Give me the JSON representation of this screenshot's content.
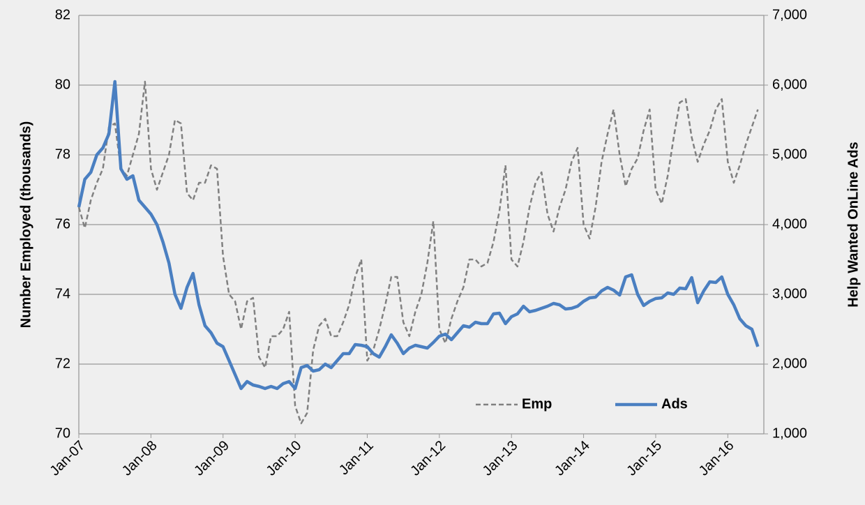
{
  "chart_data": {
    "type": "line",
    "categories": [
      "Jan-07",
      null,
      null,
      null,
      null,
      null,
      null,
      null,
      null,
      null,
      null,
      null,
      "Jan-08",
      null,
      null,
      null,
      null,
      null,
      null,
      null,
      null,
      null,
      null,
      null,
      "Jan-09",
      null,
      null,
      null,
      null,
      null,
      null,
      null,
      null,
      null,
      null,
      null,
      "Jan-10",
      null,
      null,
      null,
      null,
      null,
      null,
      null,
      null,
      null,
      null,
      null,
      "Jan-11",
      null,
      null,
      null,
      null,
      null,
      null,
      null,
      null,
      null,
      null,
      null,
      "Jan-12",
      null,
      null,
      null,
      null,
      null,
      null,
      null,
      null,
      null,
      null,
      null,
      "Jan-13",
      null,
      null,
      null,
      null,
      null,
      null,
      null,
      null,
      null,
      null,
      null,
      "Jan-14",
      null,
      null,
      null,
      null,
      null,
      null,
      null,
      null,
      null,
      null,
      null,
      "Jan-15",
      null,
      null,
      null,
      null,
      null,
      null,
      null,
      null,
      null,
      null,
      null,
      "Jan-16",
      null,
      null,
      null,
      null,
      null
    ],
    "series": [
      {
        "name": "Emp",
        "color": "#808080",
        "dash": true,
        "axis": "y",
        "values": [
          76.5,
          75.9,
          76.7,
          77.2,
          77.6,
          78.8,
          78.9,
          77.6,
          77.4,
          78.0,
          78.6,
          80.1,
          77.6,
          77.0,
          77.5,
          78.0,
          79.0,
          78.9,
          76.9,
          76.7,
          77.2,
          77.2,
          77.7,
          77.6,
          75.1,
          74.0,
          73.8,
          73.0,
          73.8,
          73.9,
          72.2,
          71.9,
          72.8,
          72.8,
          73.0,
          73.5,
          70.8,
          70.3,
          70.6,
          72.4,
          73.1,
          73.3,
          72.8,
          72.8,
          73.2,
          73.7,
          74.5,
          75.0,
          72.1,
          72.4,
          73.0,
          73.7,
          74.5,
          74.5,
          73.2,
          72.8,
          73.5,
          74.0,
          74.9,
          76.1,
          73.0,
          72.6,
          73.3,
          73.8,
          74.2,
          75.0,
          75.0,
          74.8,
          74.9,
          75.5,
          76.4,
          77.7,
          75.0,
          74.8,
          75.5,
          76.5,
          77.2,
          77.5,
          76.3,
          75.8,
          76.5,
          77.0,
          77.8,
          78.2,
          76.0,
          75.6,
          76.5,
          77.8,
          78.6,
          79.3,
          78.0,
          77.1,
          77.6,
          77.9,
          78.7,
          79.3,
          77.0,
          76.6,
          77.4,
          78.5,
          79.5,
          79.6,
          78.5,
          77.8,
          78.3,
          78.7,
          79.3,
          79.6,
          77.8,
          77.2,
          77.7,
          78.3,
          78.8,
          79.3
        ]
      },
      {
        "name": "Ads",
        "color": "#4a7fc1",
        "dash": false,
        "axis": "y2",
        "values": [
          4250,
          4650,
          4750,
          5000,
          5100,
          5300,
          6050,
          4800,
          4650,
          4700,
          4350,
          4250,
          4150,
          4000,
          3750,
          3450,
          3000,
          2800,
          3100,
          3300,
          2850,
          2550,
          2450,
          2300,
          2250,
          2050,
          1850,
          1650,
          1750,
          1700,
          1680,
          1650,
          1680,
          1650,
          1720,
          1750,
          1650,
          1950,
          1980,
          1900,
          1920,
          2000,
          1950,
          2050,
          2150,
          2150,
          2280,
          2270,
          2250,
          2150,
          2100,
          2250,
          2420,
          2300,
          2150,
          2230,
          2270,
          2250,
          2230,
          2310,
          2400,
          2430,
          2350,
          2450,
          2550,
          2530,
          2600,
          2580,
          2580,
          2720,
          2730,
          2580,
          2680,
          2720,
          2830,
          2750,
          2770,
          2800,
          2830,
          2870,
          2850,
          2790,
          2800,
          2830,
          2900,
          2950,
          2960,
          3050,
          3100,
          3060,
          2990,
          3250,
          3280,
          3000,
          2840,
          2900,
          2940,
          2950,
          3020,
          3000,
          3090,
          3080,
          3240,
          2880,
          3050,
          3180,
          3170,
          3250,
          3000,
          2850,
          2650,
          2550,
          2500,
          2250
        ]
      }
    ],
    "ylabel": "Number Employed (thousands)",
    "y2label": "Help Wanted OnLine Ads",
    "ylim": [
      70,
      82
    ],
    "yticks": [
      70,
      72,
      74,
      76,
      78,
      80,
      82
    ],
    "y2lim": [
      1000,
      7000
    ],
    "y2ticks": [
      {
        "value": 1000,
        "label": "1,000"
      },
      {
        "value": 2000,
        "label": "2,000"
      },
      {
        "value": 3000,
        "label": "3,000"
      },
      {
        "value": 4000,
        "label": "4,000"
      },
      {
        "value": 5000,
        "label": "5,000"
      },
      {
        "value": 6000,
        "label": "6,000"
      },
      {
        "value": 7000,
        "label": "7,000"
      }
    ],
    "grid": true,
    "legend": "lower right"
  }
}
